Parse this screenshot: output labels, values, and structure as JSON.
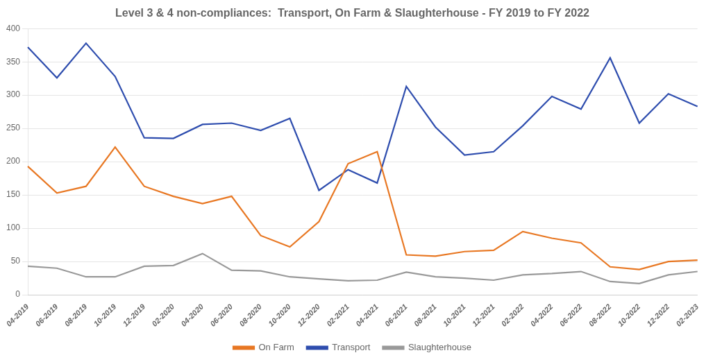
{
  "chart_data": {
    "type": "line",
    "title": "Level 3 & 4 non-compliances:  Transport, On Farm & Slaughterhouse - FY 2019 to FY 2022",
    "categories": [
      "04-2019",
      "06-2019",
      "08-2019",
      "10-2019",
      "12-2019",
      "02-2020",
      "04-2020",
      "06-2020",
      "08-2020",
      "10-2020",
      "12-2020",
      "02-2021",
      "04-2021",
      "06-2021",
      "08-2021",
      "10-2021",
      "12-2021",
      "02-2022",
      "04-2022",
      "06-2022",
      "08-2022",
      "10-2022",
      "12-2022",
      "02-2023"
    ],
    "series": [
      {
        "name": "On Farm",
        "color": "#E87722",
        "values": [
          193,
          153,
          163,
          222,
          163,
          148,
          137,
          148,
          89,
          72,
          110,
          197,
          215,
          60,
          58,
          65,
          67,
          95,
          85,
          78,
          42,
          38,
          50,
          52
        ]
      },
      {
        "name": "Transport",
        "color": "#2E4DAE",
        "values": [
          372,
          326,
          378,
          328,
          236,
          235,
          256,
          258,
          247,
          265,
          157,
          188,
          168,
          313,
          252,
          210,
          215,
          254,
          298,
          279,
          356,
          258,
          302,
          283
        ]
      },
      {
        "name": "Slaughterhouse",
        "color": "#999999",
        "values": [
          43,
          40,
          27,
          27,
          43,
          44,
          62,
          37,
          36,
          27,
          24,
          21,
          22,
          34,
          27,
          25,
          22,
          30,
          32,
          35,
          20,
          17,
          30,
          35
        ]
      }
    ],
    "ylim": [
      0,
      400
    ],
    "yticks": [
      0,
      50,
      100,
      150,
      200,
      250,
      300,
      350,
      400
    ],
    "grid": true,
    "legend": "bottom"
  }
}
